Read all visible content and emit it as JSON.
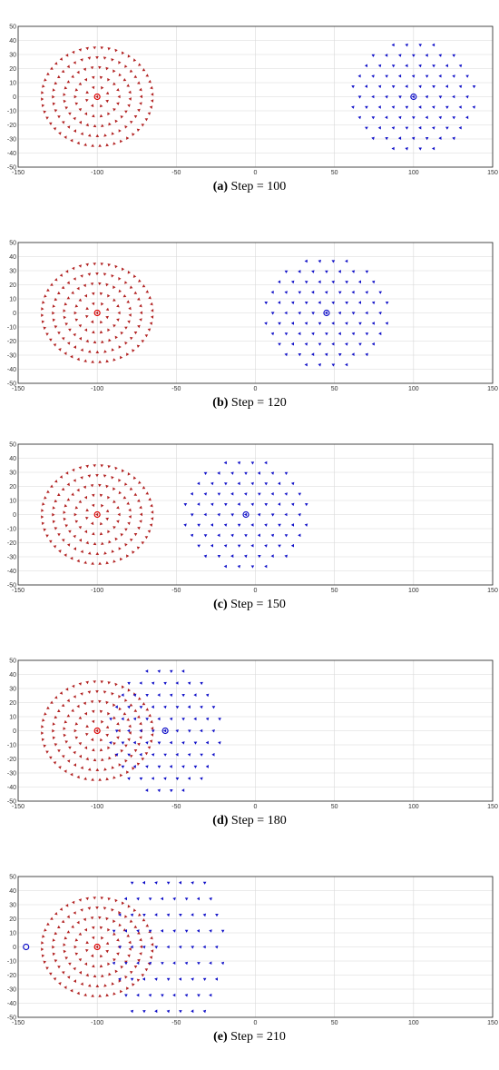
{
  "colors": {
    "red": "#b22222",
    "blue": "#1010c8",
    "grid": "#d8d8d8",
    "frame": "#222222"
  },
  "xticks": [
    "-150",
    "-100",
    "-50",
    "0",
    "50",
    "100",
    "150"
  ],
  "yticks": [
    "50",
    "40",
    "30",
    "20",
    "10",
    "0",
    "-10",
    "-20",
    "-30",
    "-40",
    "-50"
  ],
  "chart_data": [
    {
      "type": "scatter",
      "caption_letter": "(a)",
      "caption_text": " Step = 100",
      "xlim": [
        -150,
        150
      ],
      "ylim": [
        -50,
        50
      ],
      "grid": true,
      "red_center": [
        -100,
        0
      ],
      "blue_center": [
        100,
        0
      ],
      "blue_scale": [
        1,
        1
      ],
      "blue_clip": false
    },
    {
      "type": "scatter",
      "caption_letter": "(b)",
      "caption_text": " Step = 120",
      "xlim": [
        -150,
        150
      ],
      "ylim": [
        -50,
        50
      ],
      "grid": true,
      "red_center": [
        -100,
        0
      ],
      "blue_center": [
        45,
        0
      ],
      "blue_scale": [
        1,
        1
      ],
      "blue_clip": false
    },
    {
      "type": "scatter",
      "caption_letter": "(c)",
      "caption_text": " Step = 150",
      "xlim": [
        -150,
        150
      ],
      "ylim": [
        -50,
        50
      ],
      "grid": true,
      "red_center": [
        -100,
        0
      ],
      "blue_center": [
        -6,
        0
      ],
      "blue_scale": [
        1,
        1
      ],
      "blue_clip": false
    },
    {
      "type": "scatter",
      "caption_letter": "(d)",
      "caption_text": " Step = 180",
      "xlim": [
        -150,
        150
      ],
      "ylim": [
        -50,
        50
      ],
      "grid": true,
      "red_center": [
        -100,
        0
      ],
      "blue_center": [
        -57,
        0
      ],
      "blue_scale": [
        0.9,
        1.15
      ],
      "blue_clip": false
    },
    {
      "type": "scatter",
      "caption_letter": "(e)",
      "caption_text": " Step = 210",
      "xlim": [
        -150,
        150
      ],
      "ylim": [
        -50,
        50
      ],
      "grid": true,
      "red_center": [
        -100,
        0
      ],
      "blue_center": [
        -145,
        0
      ],
      "blue_scale": [
        2.2,
        1.55
      ],
      "blue_clip": true
    }
  ]
}
